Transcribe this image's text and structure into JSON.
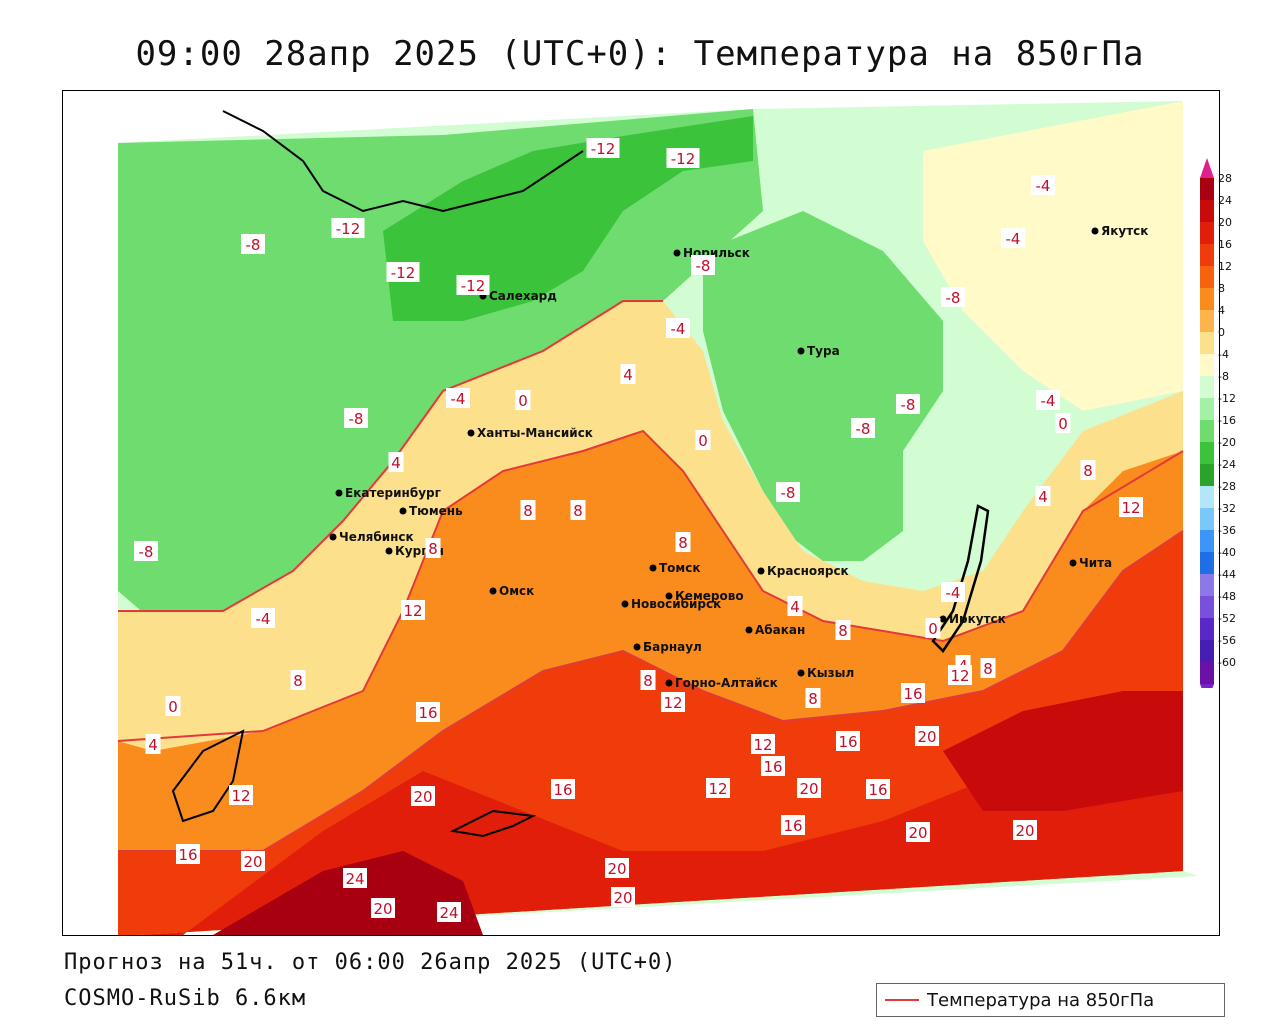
{
  "header": {
    "title": "09:00 28апр 2025 (UTC+0): Температура на 850гПа"
  },
  "footer": {
    "forecast": "Прогноз на 51ч. от 06:00 26апр 2025 (UTC+0)",
    "model": "COSMO-RuSib 6.6км"
  },
  "legend": {
    "label": "Температура на 850гПа",
    "line_color": "#e23a3a"
  },
  "colorbar": {
    "labels": [
      "28",
      "24",
      "20",
      "16",
      "12",
      "8",
      "4",
      "0",
      "-4",
      "-8",
      "-12",
      "-16",
      "-20",
      "-24",
      "-28",
      "-32",
      "-36",
      "-40",
      "-44",
      "-48",
      "-52",
      "-56",
      "-60"
    ],
    "colors": [
      "#a80010",
      "#c80a0a",
      "#e01e0a",
      "#f03c0a",
      "#f7620f",
      "#fa8c1e",
      "#fdb44a",
      "#fde08c",
      "#fffac8",
      "#d2fcd2",
      "#a4f0a4",
      "#6edc6e",
      "#3cc33c",
      "#28a528",
      "#b4e6fa",
      "#78c8fa",
      "#3c96fa",
      "#1e6ee6",
      "#8c78e6",
      "#7850dc",
      "#5a28c8",
      "#461eb4",
      "#6a12a8"
    ],
    "top_cap_color": "#e0208c",
    "bottom_cap_color": "#7a22c8"
  },
  "cities": [
    {
      "name": "Якутск"
    },
    {
      "name": "Норильск"
    },
    {
      "name": "Салехард"
    },
    {
      "name": "Тура"
    },
    {
      "name": "Ханты-Мансийск"
    },
    {
      "name": "Екатеринбург"
    },
    {
      "name": "Тюмень"
    },
    {
      "name": "Челябинск"
    },
    {
      "name": "Курган"
    },
    {
      "name": "Омск"
    },
    {
      "name": "Новосибирск"
    },
    {
      "name": "Томск"
    },
    {
      "name": "Кемерово"
    },
    {
      "name": "Красноярск"
    },
    {
      "name": "Абакан"
    },
    {
      "name": "Барнаул"
    },
    {
      "name": "Горно-Алтайск"
    },
    {
      "name": "Кызыл"
    },
    {
      "name": "Иркутск"
    },
    {
      "name": "Чита"
    }
  ],
  "isotherm_labels": [
    {
      "text": "-12"
    },
    {
      "text": "-12"
    },
    {
      "text": "-12"
    },
    {
      "text": "-12"
    },
    {
      "text": "-12"
    },
    {
      "text": "-8"
    },
    {
      "text": "-8"
    },
    {
      "text": "-8"
    },
    {
      "text": "-8"
    },
    {
      "text": "-8"
    },
    {
      "text": "-8"
    },
    {
      "text": "-8"
    },
    {
      "text": "-8"
    },
    {
      "text": "-4"
    },
    {
      "text": "-4"
    },
    {
      "text": "-4"
    },
    {
      "text": "-4"
    },
    {
      "text": "-4"
    },
    {
      "text": "-4"
    },
    {
      "text": "-4"
    },
    {
      "text": "0"
    },
    {
      "text": "0"
    },
    {
      "text": "0"
    },
    {
      "text": "0"
    },
    {
      "text": "0"
    },
    {
      "text": "4"
    },
    {
      "text": "4"
    },
    {
      "text": "4"
    },
    {
      "text": "4"
    },
    {
      "text": "4"
    },
    {
      "text": "4"
    },
    {
      "text": "8"
    },
    {
      "text": "8"
    },
    {
      "text": "8"
    },
    {
      "text": "8"
    },
    {
      "text": "8"
    },
    {
      "text": "8"
    },
    {
      "text": "8"
    },
    {
      "text": "8"
    },
    {
      "text": "8"
    },
    {
      "text": "8"
    },
    {
      "text": "12"
    },
    {
      "text": "12"
    },
    {
      "text": "12"
    },
    {
      "text": "12"
    },
    {
      "text": "12"
    },
    {
      "text": "12"
    },
    {
      "text": "12"
    },
    {
      "text": "16"
    },
    {
      "text": "16"
    },
    {
      "text": "16"
    },
    {
      "text": "16"
    },
    {
      "text": "16"
    },
    {
      "text": "16"
    },
    {
      "text": "16"
    },
    {
      "text": "16"
    },
    {
      "text": "20"
    },
    {
      "text": "20"
    },
    {
      "text": "20"
    },
    {
      "text": "20"
    },
    {
      "text": "20"
    },
    {
      "text": "20"
    },
    {
      "text": "20"
    },
    {
      "text": "20"
    },
    {
      "text": "20"
    },
    {
      "text": "24"
    },
    {
      "text": "24"
    }
  ]
}
